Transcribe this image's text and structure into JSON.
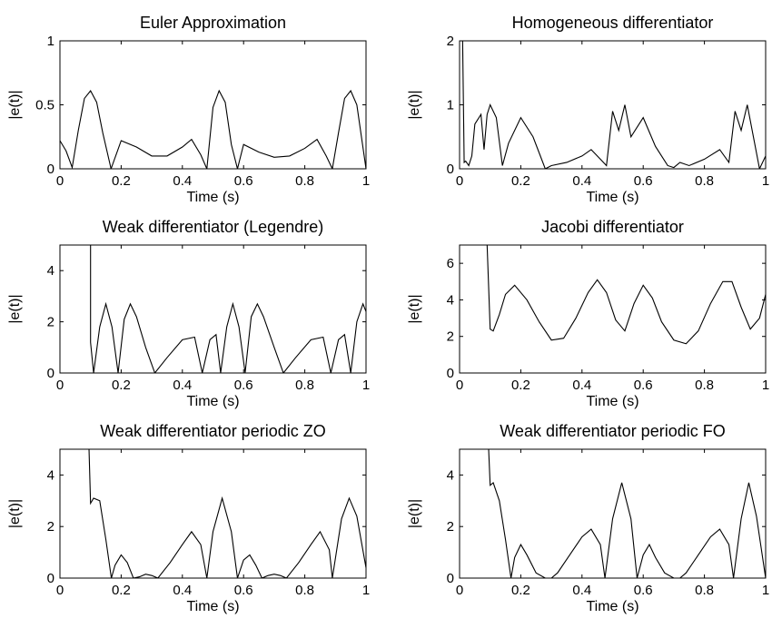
{
  "chart_data": [
    {
      "type": "line",
      "title": "Euler Approximation",
      "xlabel": "Time (s)",
      "ylabel": "|e(t)|",
      "xlim": [
        0,
        1
      ],
      "ylim": [
        0,
        1
      ],
      "xticks": [
        "0",
        "0.2",
        "0.4",
        "0.6",
        "0.8",
        "1"
      ],
      "yticks": [
        "0",
        "0.5",
        "1"
      ],
      "x": [
        0,
        0.02,
        0.04,
        0.06,
        0.08,
        0.1,
        0.12,
        0.14,
        0.167,
        0.2,
        0.25,
        0.3,
        0.35,
        0.4,
        0.43,
        0.46,
        0.48,
        0.5,
        0.52,
        0.54,
        0.56,
        0.58,
        0.6,
        0.65,
        0.7,
        0.75,
        0.8,
        0.84,
        0.87,
        0.89,
        0.91,
        0.93,
        0.95,
        0.97,
        1.0
      ],
      "y": [
        0.22,
        0.14,
        0.01,
        0.3,
        0.55,
        0.61,
        0.52,
        0.28,
        0.0,
        0.22,
        0.17,
        0.1,
        0.1,
        0.17,
        0.23,
        0.11,
        0.0,
        0.48,
        0.61,
        0.52,
        0.19,
        0.0,
        0.19,
        0.13,
        0.09,
        0.1,
        0.16,
        0.23,
        0.1,
        0.0,
        0.28,
        0.55,
        0.61,
        0.5,
        0.0
      ]
    },
    {
      "type": "line",
      "title": "Homogeneous differentiator",
      "xlabel": "Time (s)",
      "ylabel": "|e(t)|",
      "xlim": [
        0,
        1
      ],
      "ylim": [
        0,
        2
      ],
      "xticks": [
        "0",
        "0.2",
        "0.4",
        "0.6",
        "0.8",
        "1"
      ],
      "yticks": [
        "0",
        "1",
        "2"
      ],
      "x": [
        0.005,
        0.01,
        0.015,
        0.02,
        0.03,
        0.04,
        0.05,
        0.07,
        0.08,
        0.09,
        0.1,
        0.12,
        0.14,
        0.16,
        0.2,
        0.24,
        0.28,
        0.3,
        0.35,
        0.4,
        0.43,
        0.46,
        0.48,
        0.5,
        0.52,
        0.54,
        0.56,
        0.6,
        0.64,
        0.68,
        0.7,
        0.72,
        0.75,
        0.8,
        0.85,
        0.88,
        0.9,
        0.92,
        0.94,
        0.96,
        0.98,
        1.0
      ],
      "y": [
        2.0,
        2.0,
        0.1,
        0.12,
        0.05,
        0.2,
        0.7,
        0.85,
        0.3,
        0.85,
        1.0,
        0.8,
        0.05,
        0.4,
        0.8,
        0.5,
        0.0,
        0.05,
        0.1,
        0.2,
        0.3,
        0.15,
        0.05,
        0.9,
        0.6,
        1.0,
        0.5,
        0.8,
        0.35,
        0.05,
        0.02,
        0.1,
        0.05,
        0.15,
        0.3,
        0.1,
        0.9,
        0.6,
        1.0,
        0.5,
        0.0,
        0.2
      ]
    },
    {
      "type": "line",
      "title": "Weak differentiator (Legendre)",
      "xlabel": "Time (s)",
      "ylabel": "|e(t)|",
      "xlim": [
        0,
        1
      ],
      "ylim": [
        0,
        5
      ],
      "xticks": [
        "0",
        "0.2",
        "0.4",
        "0.6",
        "0.8",
        "1"
      ],
      "yticks": [
        "0",
        "2",
        "4"
      ],
      "x": [
        0.1,
        0.1,
        0.11,
        0.13,
        0.15,
        0.17,
        0.19,
        0.21,
        0.23,
        0.25,
        0.28,
        0.31,
        0.35,
        0.4,
        0.44,
        0.465,
        0.49,
        0.51,
        0.525,
        0.545,
        0.565,
        0.585,
        0.605,
        0.625,
        0.645,
        0.665,
        0.7,
        0.73,
        0.77,
        0.82,
        0.86,
        0.885,
        0.91,
        0.93,
        0.95,
        0.97,
        0.99,
        1.0
      ],
      "y": [
        5.0,
        1.2,
        0.0,
        1.8,
        2.7,
        1.8,
        0.0,
        2.1,
        2.7,
        2.2,
        1.0,
        0.0,
        0.6,
        1.3,
        1.4,
        0.0,
        1.3,
        1.5,
        0.0,
        1.8,
        2.7,
        1.8,
        0.0,
        2.2,
        2.7,
        2.2,
        1.0,
        0.0,
        0.6,
        1.3,
        1.4,
        0.0,
        1.3,
        1.5,
        0.0,
        2.0,
        2.7,
        2.4
      ]
    },
    {
      "type": "line",
      "title": "Jacobi differentiator",
      "xlabel": "Time (s)",
      "ylabel": "|e(t)|",
      "xlim": [
        0,
        1
      ],
      "ylim": [
        0,
        7
      ],
      "xticks": [
        "0",
        "0.2",
        "0.4",
        "0.6",
        "0.8",
        "1"
      ],
      "yticks": [
        "0",
        "2",
        "4",
        "6"
      ],
      "x": [
        0.09,
        0.1,
        0.11,
        0.13,
        0.15,
        0.18,
        0.22,
        0.26,
        0.3,
        0.34,
        0.38,
        0.42,
        0.45,
        0.48,
        0.51,
        0.54,
        0.57,
        0.6,
        0.63,
        0.66,
        0.7,
        0.74,
        0.78,
        0.82,
        0.86,
        0.89,
        0.92,
        0.95,
        0.98,
        1.0
      ],
      "y": [
        7.0,
        2.4,
        2.3,
        3.2,
        4.3,
        4.8,
        4.0,
        2.8,
        1.8,
        1.9,
        3.0,
        4.4,
        5.1,
        4.4,
        2.9,
        2.3,
        3.8,
        4.8,
        4.1,
        2.8,
        1.8,
        1.6,
        2.3,
        3.8,
        5.0,
        5.0,
        3.6,
        2.4,
        3.0,
        4.3
      ]
    },
    {
      "type": "line",
      "title": "Weak differentiator periodic ZO",
      "xlabel": "Time (s)",
      "ylabel": "|e(t)|",
      "xlim": [
        0,
        1
      ],
      "ylim": [
        0,
        5
      ],
      "xticks": [
        "0",
        "0.2",
        "0.4",
        "0.6",
        "0.8",
        "1"
      ],
      "yticks": [
        "0",
        "2",
        "4"
      ],
      "x": [
        0.095,
        0.1,
        0.11,
        0.13,
        0.15,
        0.168,
        0.18,
        0.2,
        0.22,
        0.24,
        0.26,
        0.28,
        0.3,
        0.32,
        0.36,
        0.4,
        0.43,
        0.46,
        0.48,
        0.5,
        0.53,
        0.56,
        0.58,
        0.6,
        0.62,
        0.64,
        0.66,
        0.68,
        0.7,
        0.72,
        0.74,
        0.78,
        0.82,
        0.85,
        0.88,
        0.89,
        0.92,
        0.945,
        0.97,
        1.0
      ],
      "y": [
        5.0,
        2.9,
        3.1,
        3.0,
        1.5,
        0.0,
        0.5,
        0.9,
        0.6,
        0.0,
        0.05,
        0.15,
        0.1,
        0.0,
        0.6,
        1.3,
        1.8,
        1.3,
        0.0,
        1.8,
        3.1,
        1.8,
        0.0,
        0.7,
        0.9,
        0.5,
        0.0,
        0.1,
        0.15,
        0.1,
        0.0,
        0.6,
        1.3,
        1.8,
        1.1,
        0.0,
        2.3,
        3.1,
        2.4,
        0.4
      ]
    },
    {
      "type": "line",
      "title": "Weak differentiator periodic FO",
      "xlabel": "Time (s)",
      "ylabel": "|e(t)|",
      "xlim": [
        0,
        1
      ],
      "ylim": [
        0,
        5
      ],
      "xticks": [
        "0",
        "0.2",
        "0.4",
        "0.6",
        "0.8",
        "1"
      ],
      "yticks": [
        "0",
        "2",
        "4"
      ],
      "x": [
        0.095,
        0.1,
        0.11,
        0.13,
        0.15,
        0.168,
        0.18,
        0.2,
        0.22,
        0.25,
        0.28,
        0.3,
        0.32,
        0.36,
        0.4,
        0.43,
        0.46,
        0.475,
        0.5,
        0.53,
        0.56,
        0.58,
        0.6,
        0.62,
        0.64,
        0.67,
        0.7,
        0.72,
        0.74,
        0.78,
        0.82,
        0.85,
        0.88,
        0.895,
        0.92,
        0.945,
        0.97,
        1.0
      ],
      "y": [
        5.0,
        3.6,
        3.7,
        3.0,
        1.5,
        0.0,
        0.8,
        1.3,
        0.9,
        0.2,
        0.0,
        0.0,
        0.2,
        0.9,
        1.6,
        1.9,
        1.3,
        0.0,
        2.3,
        3.7,
        2.3,
        0.0,
        0.9,
        1.3,
        0.8,
        0.2,
        0.0,
        0.0,
        0.2,
        0.9,
        1.6,
        1.9,
        1.3,
        0.0,
        2.3,
        3.7,
        2.4,
        0.0
      ]
    }
  ]
}
